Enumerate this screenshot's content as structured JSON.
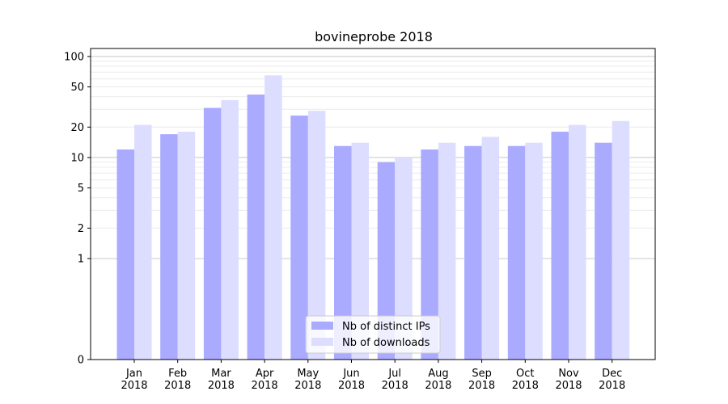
{
  "chart_data": {
    "type": "bar",
    "title": "bovineprobe 2018",
    "xlabel": "",
    "ylabel": "",
    "yscale": "symlog",
    "ylim": [
      0,
      120
    ],
    "yticks": [
      0,
      1,
      2,
      5,
      10,
      20,
      50,
      100
    ],
    "grid": true,
    "legend_position": "bottom-center",
    "categories": [
      "Jan\n2018",
      "Feb\n2018",
      "Mar\n2018",
      "Apr\n2018",
      "May\n2018",
      "Jun\n2018",
      "Jul\n2018",
      "Aug\n2018",
      "Sep\n2018",
      "Oct\n2018",
      "Nov\n2018",
      "Dec\n2018"
    ],
    "series": [
      {
        "name": "Nb of distinct IPs",
        "color": "#aaaaff",
        "values": [
          12,
          17,
          31,
          42,
          26,
          13,
          9,
          12,
          13,
          13,
          18,
          14
        ]
      },
      {
        "name": "Nb of downloads",
        "color": "#ddddff",
        "values": [
          21,
          18,
          37,
          65,
          29,
          14,
          10,
          14,
          16,
          14,
          21,
          23
        ]
      }
    ]
  }
}
